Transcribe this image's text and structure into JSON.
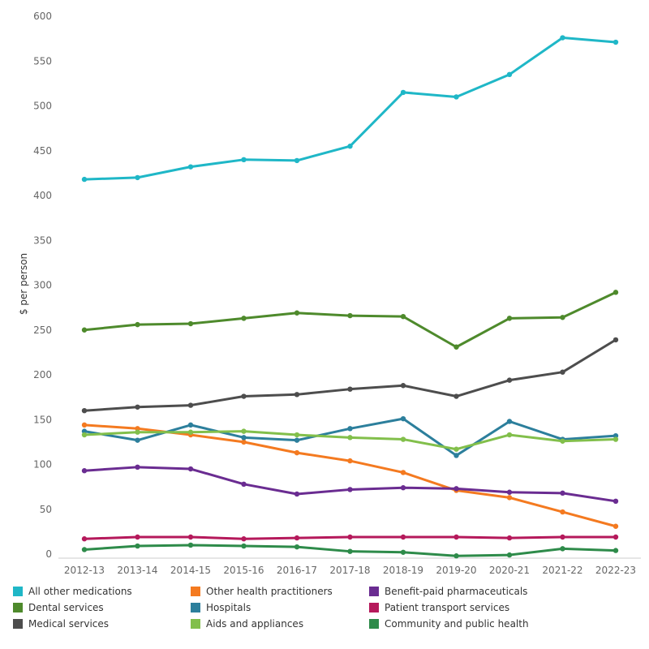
{
  "chart_data": {
    "type": "line",
    "title": "",
    "xlabel": "",
    "ylabel": "$ per person",
    "ylim": [
      0,
      600
    ],
    "yticks": [
      0,
      50,
      100,
      150,
      200,
      250,
      300,
      350,
      400,
      450,
      500,
      550,
      600
    ],
    "grid": false,
    "legend_position": "bottom",
    "categories": [
      "2012-13",
      "2013-14",
      "2014-15",
      "2015-16",
      "2016-17",
      "2017-18",
      "2018-19",
      "2019-20",
      "2020-21",
      "2021-22",
      "2022-23"
    ],
    "series": [
      {
        "name": "All other medications",
        "color": "#1fb7c7",
        "values": [
          418,
          420,
          432,
          440,
          439,
          455,
          515,
          510,
          535,
          576,
          571
        ]
      },
      {
        "name": "Dental services",
        "color": "#4e8a2c",
        "values": [
          250,
          256,
          257,
          263,
          269,
          266,
          265,
          231,
          263,
          264,
          292
        ]
      },
      {
        "name": "Medical services",
        "color": "#4d4d4d",
        "values": [
          160,
          164,
          166,
          176,
          178,
          184,
          188,
          176,
          194,
          203,
          239
        ]
      },
      {
        "name": "Other health practitioners",
        "color": "#f47a20",
        "values": [
          144,
          140,
          133,
          125,
          113,
          104,
          91,
          71,
          63,
          47,
          31
        ]
      },
      {
        "name": "Hospitals",
        "color": "#2c7f9c",
        "values": [
          137,
          127,
          144,
          130,
          127,
          140,
          151,
          110,
          148,
          128,
          132
        ]
      },
      {
        "name": "Aids and appliances",
        "color": "#82bf4b",
        "values": [
          133,
          136,
          136,
          137,
          133,
          130,
          128,
          117,
          133,
          126,
          128
        ]
      },
      {
        "name": "Benefit-paid pharmaceuticals",
        "color": "#6a2c91",
        "values": [
          93,
          97,
          95,
          78,
          67,
          72,
          74,
          73,
          69,
          68,
          59
        ]
      },
      {
        "name": "Patient transport services",
        "color": "#b5195b",
        "values": [
          17,
          19,
          19,
          17,
          18,
          19,
          19,
          19,
          18,
          19,
          19
        ]
      },
      {
        "name": "Community and public health",
        "color": "#2e8b4a",
        "values": [
          5,
          9,
          10,
          9,
          8,
          3,
          2,
          -2,
          -1,
          6,
          4
        ]
      }
    ]
  }
}
